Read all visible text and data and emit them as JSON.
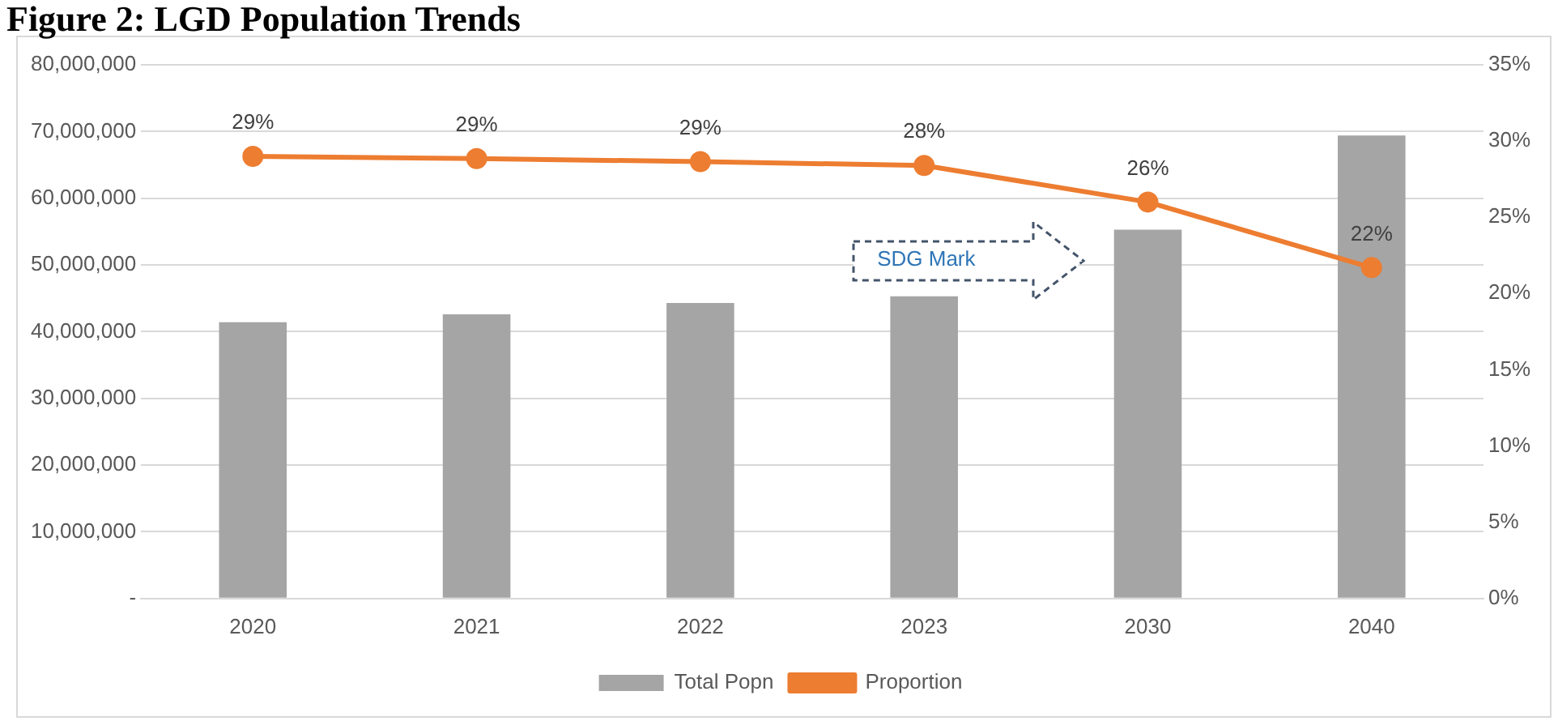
{
  "chart_data": {
    "type": "bar",
    "title": "Figure 2: LGD Population Trends",
    "categories": [
      "2020",
      "2021",
      "2022",
      "2023",
      "2030",
      "2040"
    ],
    "series": [
      {
        "name": "Total Popn",
        "color": "#a5a5a5",
        "values": [
          41400000,
          42600000,
          44300000,
          45300000,
          55300000,
          69400000
        ]
      },
      {
        "name": "Proportion",
        "type": "line",
        "axis": "y2",
        "color": "#ed7d31",
        "values": [
          29.0,
          28.85,
          28.65,
          28.4,
          26.0,
          21.7
        ],
        "value_labels": [
          "29%",
          "29%",
          "29%",
          "28%",
          "26%",
          "22%"
        ]
      }
    ],
    "ylim": [
      0,
      80000000
    ],
    "yticks": [
      {
        "value": 0,
        "label": "-"
      },
      {
        "value": 10000000,
        "label": "10,000,000"
      },
      {
        "value": 20000000,
        "label": "20,000,000"
      },
      {
        "value": 30000000,
        "label": "30,000,000"
      },
      {
        "value": 40000000,
        "label": "40,000,000"
      },
      {
        "value": 50000000,
        "label": "50,000,000"
      },
      {
        "value": 60000000,
        "label": "60,000,000"
      },
      {
        "value": 70000000,
        "label": "70,000,000"
      },
      {
        "value": 80000000,
        "label": "80,000,000"
      }
    ],
    "y2lim": [
      0,
      35
    ],
    "y2ticks": [
      {
        "value": 0,
        "label": "0%"
      },
      {
        "value": 5,
        "label": "5%"
      },
      {
        "value": 10,
        "label": "10%"
      },
      {
        "value": 15,
        "label": "15%"
      },
      {
        "value": 20,
        "label": "20%"
      },
      {
        "value": 25,
        "label": "25%"
      },
      {
        "value": 30,
        "label": "30%"
      },
      {
        "value": 35,
        "label": "35%"
      }
    ],
    "annotations": [
      "SDG Mark"
    ],
    "grid": "y",
    "legend": "bottom",
    "marker": "circle",
    "line_style": "solid"
  }
}
